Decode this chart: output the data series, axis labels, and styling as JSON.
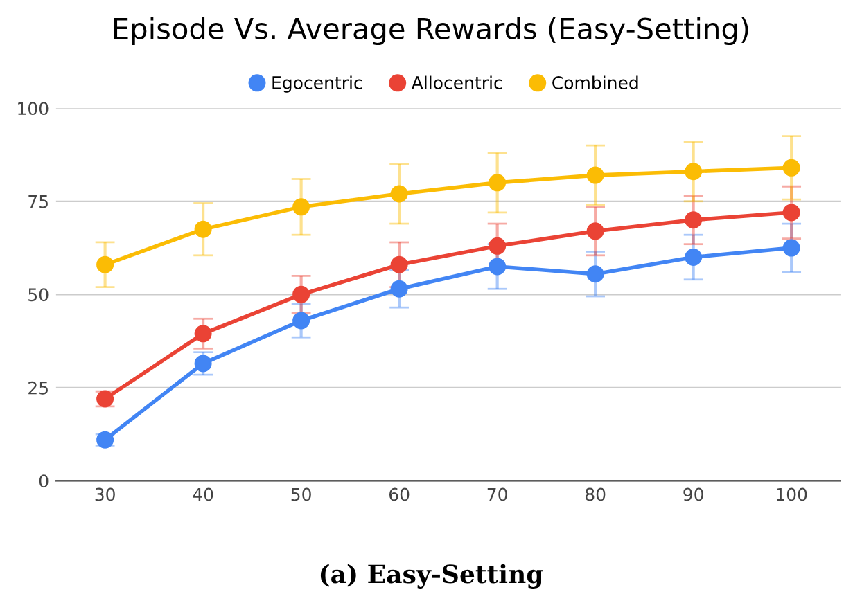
{
  "chart_data": {
    "type": "line",
    "title": "Episode Vs. Average Rewards (Easy-Setting)",
    "categories": [
      "30",
      "40",
      "50",
      "60",
      "70",
      "80",
      "90",
      "100"
    ],
    "series": [
      {
        "name": "Egocentric",
        "color": "#4285f4",
        "values": [
          11,
          31.5,
          43,
          51.5,
          57.5,
          55.5,
          60,
          62.5
        ],
        "errors": [
          1.5,
          3,
          4.5,
          5,
          6,
          6,
          6,
          6.5
        ]
      },
      {
        "name": "Allocentric",
        "color": "#ea4335",
        "values": [
          22,
          39.5,
          50,
          58,
          63,
          67,
          70,
          72
        ],
        "errors": [
          2,
          4,
          5,
          6,
          6,
          6.5,
          6.5,
          7
        ]
      },
      {
        "name": "Combined",
        "color": "#fbbc04",
        "values": [
          58,
          67.5,
          73.5,
          77,
          80,
          82,
          83,
          84
        ],
        "errors": [
          6,
          7,
          7.5,
          8,
          8,
          8,
          8,
          8.5
        ]
      }
    ],
    "ylim": [
      0,
      100
    ],
    "yticks": [
      0,
      25,
      50,
      75,
      100
    ],
    "grid": "y",
    "legend": "top",
    "marker": "circle",
    "line_style": "solid",
    "annotations": [
      "(a) Easy-Setting"
    ]
  }
}
